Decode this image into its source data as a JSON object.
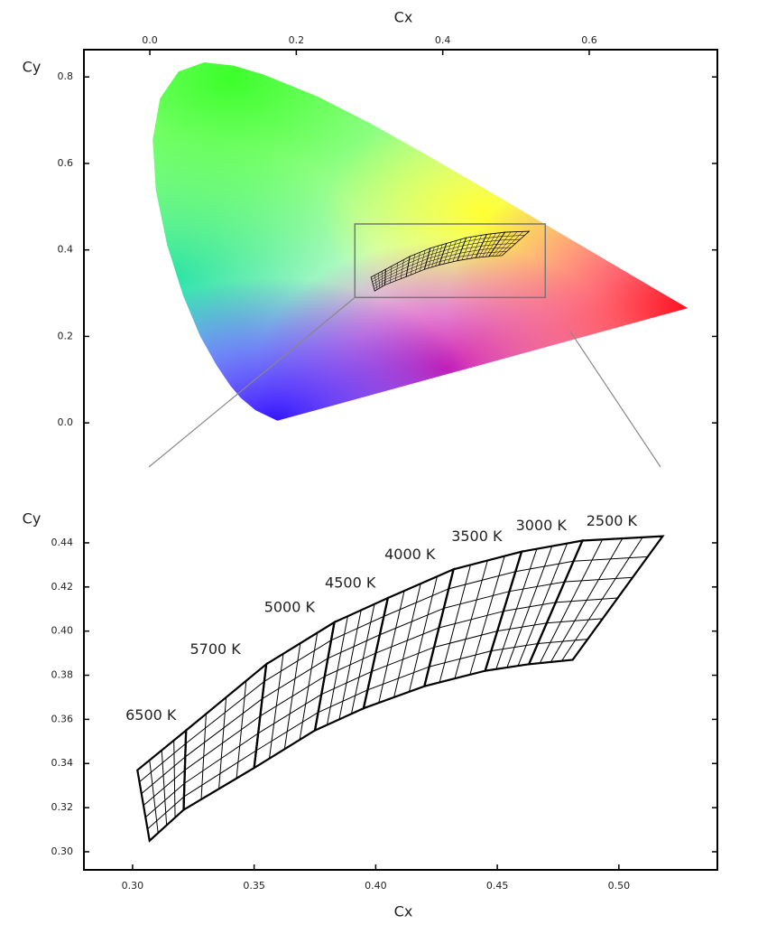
{
  "chart_data": [
    {
      "type": "chromaticity",
      "xlabel": "Cx",
      "ylabel": "Cy",
      "xlim": [
        -0.09,
        0.775
      ],
      "ylim": [
        -0.15,
        0.863
      ],
      "xticks": [
        {
          "value": 0,
          "label": "0.0"
        },
        0.2,
        0.4,
        0.6
      ],
      "yticks": [
        {
          "value": 0,
          "label": "0.0"
        },
        0.2,
        0.4,
        0.6,
        0.8
      ],
      "locus": {
        "x": [
          0.1741,
          0.144,
          0.1241,
          0.1096,
          0.0913,
          0.0687,
          0.0454,
          0.0235,
          0.0082,
          0.0039,
          0.0139,
          0.0389,
          0.0743,
          0.1142,
          0.1547,
          0.2296,
          0.3016,
          0.3731,
          0.4441,
          0.5125,
          0.5752,
          0.627,
          0.6915,
          0.7347
        ],
        "y": [
          0.005,
          0.0297,
          0.0578,
          0.0868,
          0.1327,
          0.2007,
          0.295,
          0.4127,
          0.5384,
          0.6548,
          0.7502,
          0.812,
          0.8338,
          0.8262,
          0.8059,
          0.7543,
          0.6923,
          0.6245,
          0.5547,
          0.4866,
          0.4242,
          0.3725,
          0.3083,
          0.2653
        ]
      },
      "zoom_box": {
        "x": [
          0.28,
          0.54
        ],
        "y": [
          0.29,
          0.46
        ]
      }
    },
    {
      "type": "binning",
      "xlabel": "Cx",
      "ylabel": "Cy",
      "xlim": [
        0.28,
        0.5405
      ],
      "ylim": [
        0.2918,
        0.4629
      ],
      "xticks": [
        {
          "value": 0.3,
          "label": "0.30"
        },
        0.35,
        {
          "value": 0.4,
          "label": "0.40"
        },
        0.45,
        {
          "value": 0.5,
          "label": "0.50"
        }
      ],
      "yticks": [
        {
          "value": 0.3,
          "label": "0.30"
        },
        0.32,
        0.34,
        0.36,
        0.38,
        {
          "value": 0.4,
          "label": "0.40"
        },
        0.42,
        0.44
      ],
      "bins": [
        {
          "label": "6500 K",
          "x": [
            0.302,
            0.322,
            0.321,
            0.307
          ],
          "y": [
            0.337,
            0.355,
            0.319,
            0.305
          ]
        },
        {
          "label": "5700 K",
          "x": [
            0.322,
            0.355,
            0.35,
            0.321
          ],
          "y": [
            0.355,
            0.385,
            0.338,
            0.319
          ]
        },
        {
          "label": "5000 K",
          "x": [
            0.355,
            0.383,
            0.375,
            0.35
          ],
          "y": [
            0.385,
            0.404,
            0.355,
            0.338
          ]
        },
        {
          "label": "4500 K",
          "x": [
            0.383,
            0.405,
            0.395,
            0.375
          ],
          "y": [
            0.404,
            0.415,
            0.365,
            0.355
          ]
        },
        {
          "label": "4000 K",
          "x": [
            0.405,
            0.432,
            0.42,
            0.395
          ],
          "y": [
            0.415,
            0.428,
            0.375,
            0.365
          ]
        },
        {
          "label": "3500 K",
          "x": [
            0.432,
            0.46,
            0.445,
            0.42
          ],
          "y": [
            0.428,
            0.436,
            0.382,
            0.375
          ]
        },
        {
          "label": "3000 K",
          "x": [
            0.46,
            0.485,
            0.463,
            0.445
          ],
          "y": [
            0.436,
            0.441,
            0.385,
            0.382
          ]
        },
        {
          "label": "2500 K",
          "x": [
            0.485,
            0.518,
            0.481,
            0.463
          ],
          "y": [
            0.441,
            0.443,
            0.387,
            0.385
          ]
        }
      ]
    }
  ]
}
